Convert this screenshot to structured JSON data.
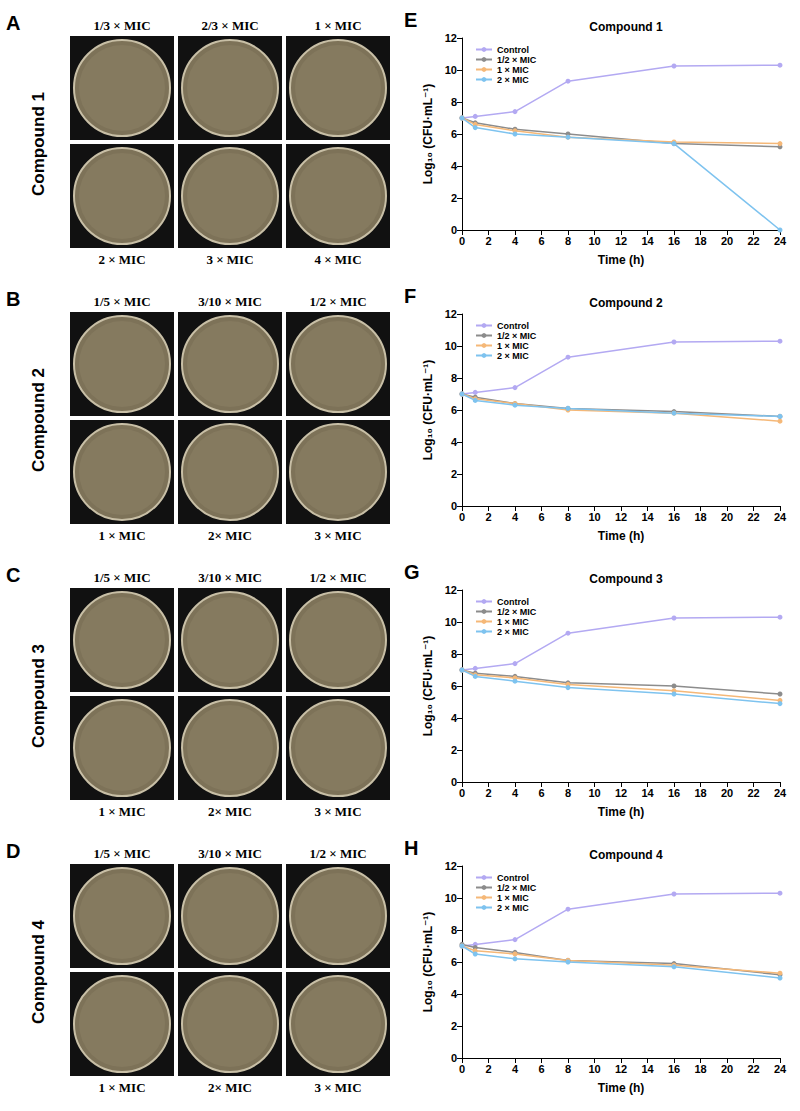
{
  "plate_panels": [
    {
      "letter": "A",
      "label": "Compound 1",
      "top_row": [
        "1/3 × MIC",
        "2/3 × MIC",
        "1 × MIC"
      ],
      "bottom_row": [
        "2 × MIC",
        "3 × MIC",
        "4 × MIC"
      ]
    },
    {
      "letter": "B",
      "label": "Compound 2",
      "top_row": [
        "1/5 × MIC",
        "3/10 × MIC",
        "1/2 × MIC"
      ],
      "bottom_row": [
        "1 × MIC",
        "2× MIC",
        "3 × MIC"
      ]
    },
    {
      "letter": "C",
      "label": "Compound 3",
      "top_row": [
        "1/5 × MIC",
        "3/10 × MIC",
        "1/2 × MIC"
      ],
      "bottom_row": [
        "1 × MIC",
        "2× MIC",
        "3 × MIC"
      ]
    },
    {
      "letter": "D",
      "label": "Compound 4",
      "top_row": [
        "1/5 × MIC",
        "3/10 × MIC",
        "1/2 × MIC"
      ],
      "bottom_row": [
        "1 × MIC",
        "2× MIC",
        "3 × MIC"
      ]
    }
  ],
  "chart_data": [
    {
      "type": "line",
      "annotations": [
        "E"
      ],
      "title": "Compound 1",
      "xlabel": "Time (h)",
      "ylabel": "Log₁₀ (CFU·mL⁻¹)",
      "x": [
        0,
        1,
        4,
        8,
        16,
        24
      ],
      "xlim": [
        0,
        24
      ],
      "xticks": [
        0,
        2,
        4,
        6,
        8,
        10,
        12,
        14,
        16,
        18,
        20,
        22,
        24
      ],
      "ylim": [
        0,
        12
      ],
      "yticks": [
        0,
        2,
        4,
        6,
        8,
        10,
        12
      ],
      "grid": false,
      "legend": "upper left",
      "marker": "circle",
      "series": [
        {
          "name": "Control",
          "color": "#b3a9f2",
          "values": [
            7.0,
            7.1,
            7.4,
            9.3,
            10.25,
            10.3
          ]
        },
        {
          "name": "1/2 × MIC",
          "color": "#8c8c8c",
          "values": [
            7.0,
            6.7,
            6.3,
            6.0,
            5.4,
            5.2
          ]
        },
        {
          "name": "1 × MIC",
          "color": "#f5b878",
          "values": [
            7.0,
            6.6,
            6.2,
            5.8,
            5.5,
            5.4
          ]
        },
        {
          "name": "2 × MIC",
          "color": "#7ec3ef",
          "values": [
            7.0,
            6.4,
            6.0,
            5.8,
            5.4,
            0
          ]
        }
      ]
    },
    {
      "type": "line",
      "annotations": [
        "F"
      ],
      "title": "Compound 2",
      "xlabel": "Time (h)",
      "ylabel": "Log₁₀ (CFU·mL⁻¹)",
      "x": [
        0,
        1,
        4,
        8,
        16,
        24
      ],
      "xlim": [
        0,
        24
      ],
      "xticks": [
        0,
        2,
        4,
        6,
        8,
        10,
        12,
        14,
        16,
        18,
        20,
        22,
        24
      ],
      "ylim": [
        0,
        12
      ],
      "yticks": [
        0,
        2,
        4,
        6,
        8,
        10,
        12
      ],
      "grid": false,
      "legend": "upper left",
      "marker": "circle",
      "series": [
        {
          "name": "Control",
          "color": "#b3a9f2",
          "values": [
            7.0,
            7.1,
            7.4,
            9.3,
            10.25,
            10.3
          ]
        },
        {
          "name": "1/2 × MIC",
          "color": "#8c8c8c",
          "values": [
            7.0,
            6.8,
            6.4,
            6.1,
            5.9,
            5.6
          ]
        },
        {
          "name": "1 × MIC",
          "color": "#f5b878",
          "values": [
            7.0,
            6.7,
            6.4,
            6.0,
            5.8,
            5.3
          ]
        },
        {
          "name": "2 × MIC",
          "color": "#7ec3ef",
          "values": [
            7.0,
            6.6,
            6.3,
            6.1,
            5.8,
            5.6
          ]
        }
      ]
    },
    {
      "type": "line",
      "annotations": [
        "G"
      ],
      "title": "Compound 3",
      "xlabel": "Time (h)",
      "ylabel": "Log₁₀ (CFU·mL⁻¹)",
      "x": [
        0,
        1,
        4,
        8,
        16,
        24
      ],
      "xlim": [
        0,
        24
      ],
      "xticks": [
        0,
        2,
        4,
        6,
        8,
        10,
        12,
        14,
        16,
        18,
        20,
        22,
        24
      ],
      "ylim": [
        0,
        12
      ],
      "yticks": [
        0,
        2,
        4,
        6,
        8,
        10,
        12
      ],
      "grid": false,
      "legend": "upper left",
      "marker": "circle",
      "series": [
        {
          "name": "Control",
          "color": "#b3a9f2",
          "values": [
            7.0,
            7.1,
            7.4,
            9.3,
            10.25,
            10.3
          ]
        },
        {
          "name": "1/2 × MIC",
          "color": "#8c8c8c",
          "values": [
            7.0,
            6.8,
            6.6,
            6.2,
            6.0,
            5.5
          ]
        },
        {
          "name": "1 × MIC",
          "color": "#f5b878",
          "values": [
            7.0,
            6.7,
            6.5,
            6.1,
            5.7,
            5.1
          ]
        },
        {
          "name": "2 × MIC",
          "color": "#7ec3ef",
          "values": [
            7.0,
            6.6,
            6.3,
            5.9,
            5.5,
            4.9
          ]
        }
      ]
    },
    {
      "type": "line",
      "annotations": [
        "H"
      ],
      "title": "Compound 4",
      "xlabel": "Time (h)",
      "ylabel": "Log₁₀ (CFU·mL⁻¹)",
      "x": [
        0,
        1,
        4,
        8,
        16,
        24
      ],
      "xlim": [
        0,
        24
      ],
      "xticks": [
        0,
        2,
        4,
        6,
        8,
        10,
        12,
        14,
        16,
        18,
        20,
        22,
        24
      ],
      "ylim": [
        0,
        12
      ],
      "yticks": [
        0,
        2,
        4,
        6,
        8,
        10,
        12
      ],
      "grid": false,
      "legend": "upper left",
      "marker": "circle",
      "series": [
        {
          "name": "Control",
          "color": "#b3a9f2",
          "values": [
            7.0,
            7.1,
            7.4,
            9.3,
            10.25,
            10.3
          ]
        },
        {
          "name": "1/2 × MIC",
          "color": "#8c8c8c",
          "values": [
            7.1,
            6.9,
            6.6,
            6.1,
            5.9,
            5.2
          ]
        },
        {
          "name": "1 × MIC",
          "color": "#f5b878",
          "values": [
            7.0,
            6.7,
            6.5,
            6.1,
            5.8,
            5.3
          ]
        },
        {
          "name": "2 × MIC",
          "color": "#7ec3ef",
          "values": [
            7.0,
            6.5,
            6.2,
            6.0,
            5.7,
            5.0
          ]
        }
      ]
    }
  ]
}
